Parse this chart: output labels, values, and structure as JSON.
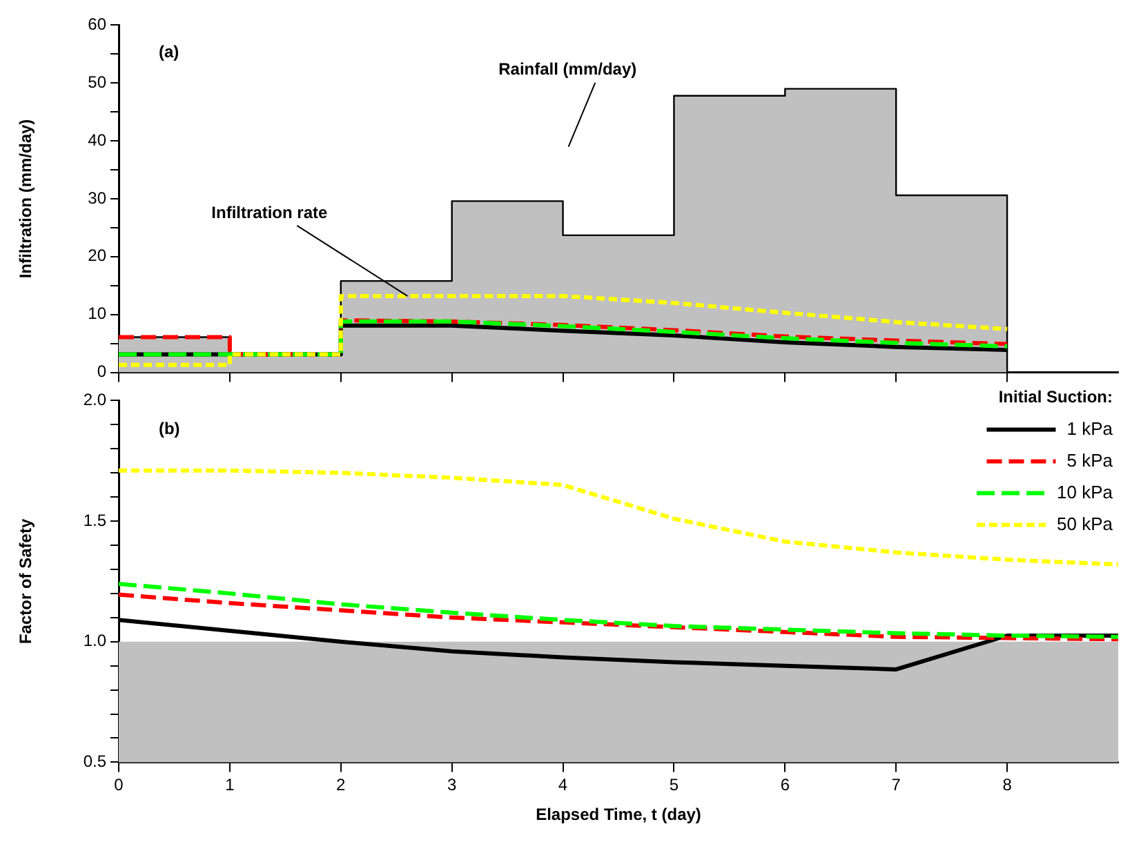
{
  "chart_data": [
    {
      "type": "line",
      "ylabel": "Infiltration (mm/day)",
      "xlim": [
        0,
        9
      ],
      "xticks": [
        0,
        1,
        2,
        3,
        4,
        5,
        6,
        7,
        8
      ],
      "ylim": [
        0,
        60
      ],
      "yticks": [
        0,
        {
          "value": 5,
          "label": null
        },
        10,
        {
          "value": 15,
          "label": null
        },
        20,
        {
          "value": 25,
          "label": null
        },
        30,
        {
          "value": 35,
          "label": null
        },
        40,
        {
          "value": 45,
          "label": null
        },
        50,
        {
          "value": 55,
          "label": null
        },
        60
      ],
      "tick_labels": "y",
      "grid": false,
      "marker": "none",
      "annotations": [
        "(a)",
        "Rainfall (mm/day)",
        {
          "text": "Infiltration rate",
          "x": 2.6,
          "y": 13.2
        }
      ],
      "series": [
        {
          "type": "area",
          "color": "#c0c0c0",
          "x": [
            0,
            1,
            1,
            2,
            2,
            3,
            3,
            4,
            4,
            5,
            5,
            6,
            6,
            7,
            7,
            8,
            8
          ],
          "values": [
            6.1,
            6.1,
            3.1,
            3.1,
            15.8,
            15.8,
            29.6,
            29.6,
            23.7,
            23.7,
            47.8,
            47.8,
            49,
            49,
            30.6,
            30.6,
            0
          ]
        },
        {
          "color": "#000000",
          "line_style": "solid",
          "x": [
            0,
            1,
            1,
            2,
            2,
            3,
            4,
            5,
            6,
            7,
            8
          ],
          "values": [
            3.1,
            3.1,
            3.1,
            3.1,
            8.1,
            8.1,
            7.2,
            6.4,
            5.2,
            4.4,
            3.9
          ]
        },
        {
          "color": "#ff0000",
          "line_style": "dashed",
          "x": [
            0,
            1,
            1,
            2,
            2,
            3,
            4,
            5,
            6,
            7,
            8
          ],
          "values": [
            6.1,
            6.1,
            3.1,
            3.1,
            9,
            8.8,
            8.2,
            7.3,
            6.2,
            5.5,
            4.9
          ]
        },
        {
          "color": "#00ff00",
          "line_style": "dashed",
          "x": [
            0,
            1,
            1,
            2,
            2,
            3,
            4,
            5,
            6,
            7,
            8
          ],
          "values": [
            3.1,
            3.1,
            3.1,
            3.1,
            8.8,
            8.8,
            8,
            7,
            5.9,
            5.1,
            4.5
          ]
        },
        {
          "color": "#ffff00",
          "line_style": "dashed",
          "x": [
            0,
            1,
            1,
            2,
            2,
            3,
            4,
            5,
            6,
            7,
            8
          ],
          "values": [
            1.3,
            1.3,
            3.1,
            3.1,
            13.2,
            13.2,
            13.2,
            12,
            10.3,
            8.7,
            7.5
          ]
        }
      ]
    },
    {
      "type": "line",
      "xlabel": "Elapsed Time, t (day)",
      "ylabel": "Factor of Safety",
      "legend_title": "Initial Suction:",
      "legend": "top right",
      "xlim": [
        0,
        9
      ],
      "xticks": [
        0,
        1,
        2,
        3,
        4,
        5,
        6,
        7,
        8
      ],
      "ylim": [
        0.5,
        2.0
      ],
      "yticks": [
        {
          "value": 0.5,
          "label": "0.5"
        },
        {
          "value": 0.6,
          "label": null
        },
        {
          "value": 0.7,
          "label": null
        },
        {
          "value": 0.8,
          "label": null
        },
        {
          "value": 0.9,
          "label": null
        },
        {
          "value": 1,
          "label": "1.0"
        },
        {
          "value": 1.1,
          "label": null
        },
        {
          "value": 1.2,
          "label": null
        },
        {
          "value": 1.3,
          "label": null
        },
        {
          "value": 1.4,
          "label": null
        },
        {
          "value": 1.5,
          "label": "1.5"
        },
        {
          "value": 1.6,
          "label": null
        },
        {
          "value": 1.7,
          "label": null
        },
        {
          "value": 1.8,
          "label": null
        },
        {
          "value": 1.9,
          "label": null
        },
        {
          "value": 2,
          "label": "2.0"
        }
      ],
      "grid": false,
      "marker": "none",
      "annotations": [
        "(b)"
      ],
      "bands": [
        {
          "axis": "y",
          "from": 0.5,
          "to": 1.0,
          "color": "#c0c0c0"
        }
      ],
      "x": [
        0,
        1,
        2,
        3,
        4,
        5,
        6,
        7,
        8,
        9
      ],
      "series": [
        {
          "name": "1 kPa",
          "color": "#000000",
          "line_style": "solid",
          "values": [
            1.09,
            1.045,
            1.0,
            0.96,
            0.935,
            0.915,
            0.9,
            0.885,
            1.025,
            1.025
          ]
        },
        {
          "name": "5 kPa",
          "color": "#ff0000",
          "line_style": "dashed",
          "values": [
            1.195,
            1.16,
            1.13,
            1.1,
            1.08,
            1.06,
            1.04,
            1.02,
            1.015,
            1.01
          ]
        },
        {
          "name": "10 kPa",
          "color": "#00ff00",
          "line_style": "dashed",
          "values": [
            1.24,
            1.2,
            1.155,
            1.12,
            1.09,
            1.065,
            1.05,
            1.035,
            1.025,
            1.02
          ]
        },
        {
          "name": "50 kPa",
          "color": "#ffff00",
          "line_style": "dashed",
          "values": [
            1.71,
            1.71,
            1.7,
            1.68,
            1.65,
            1.51,
            1.415,
            1.37,
            1.34,
            1.32
          ]
        }
      ]
    }
  ]
}
